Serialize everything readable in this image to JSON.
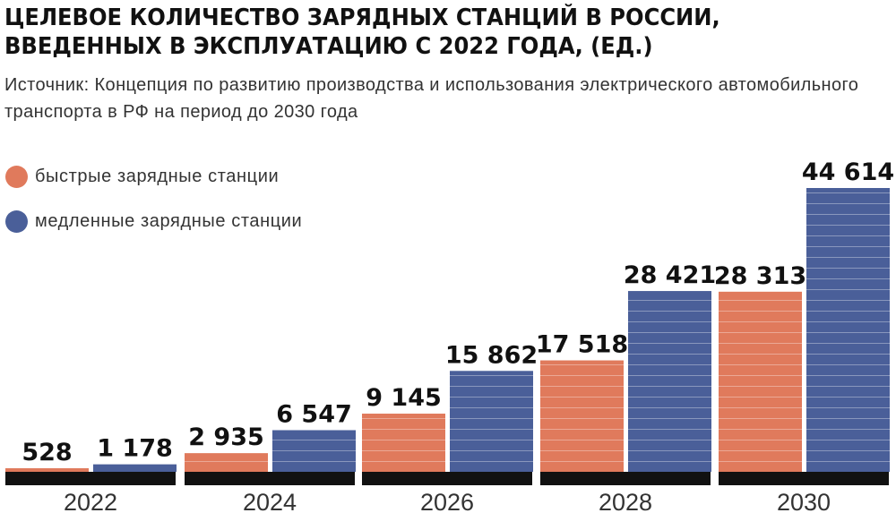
{
  "title": "ЦЕЛЕВОЕ КОЛИЧЕСТВО ЗАРЯДНЫХ СТАНЦИЙ В РОССИИ, ВВЕДЕННЫХ В ЭКСПЛУАТАЦИЮ С 2022 ГОДА, (ЕД.)",
  "source": "Источник: Концепция по развитию производства и использования электрического автомобильного транспорта в РФ на период до 2030 года",
  "colors": {
    "fast": "#e07a5c",
    "slow": "#4a5f99",
    "baseline": "#111111",
    "stripe": "#ffffff"
  },
  "legend": [
    {
      "label": "быстрые зарядные станции",
      "color_key": "fast"
    },
    {
      "label": "медленные зарядные станции",
      "color_key": "slow"
    }
  ],
  "chart_data": {
    "type": "bar",
    "categories": [
      "2022",
      "2024",
      "2026",
      "2028",
      "2030"
    ],
    "series": [
      {
        "name": "быстрые зарядные станции",
        "values": [
          528,
          2935,
          9145,
          17518,
          28313
        ],
        "labels": [
          "528",
          "2 935",
          "9 145",
          "17 518",
          "28 313"
        ]
      },
      {
        "name": "медленные зарядные станции",
        "values": [
          1178,
          6547,
          15862,
          28421,
          44614
        ],
        "labels": [
          "1 178",
          "6 547",
          "15 862",
          "28 421",
          "44 614"
        ]
      }
    ],
    "ylim": [
      0,
      44614
    ],
    "grid": false,
    "legend_position": "top-left"
  }
}
